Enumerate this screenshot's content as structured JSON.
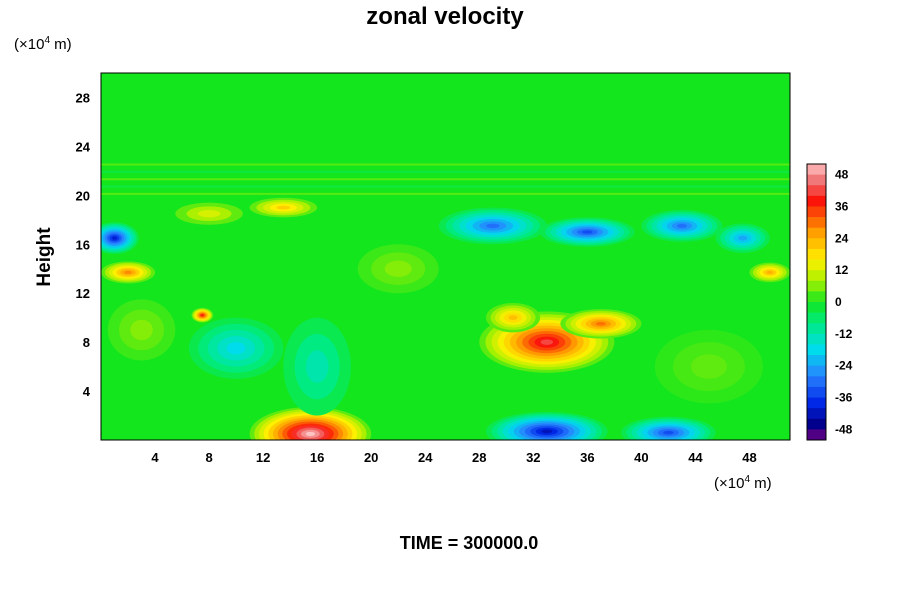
{
  "chart_data": {
    "type": "heatmap",
    "title": "zonal velocity",
    "ylabel": "Height",
    "xunit": {
      "prefix": "(×10",
      "exp": "4",
      "suffix": " m)"
    },
    "yunit": {
      "prefix": "(×10",
      "exp": "4",
      "suffix": " m)"
    },
    "footer": "TIME = 300000.0",
    "xlim": [
      0,
      51
    ],
    "ylim": [
      0,
      30
    ],
    "xticks": [
      4,
      8,
      12,
      16,
      20,
      24,
      28,
      32,
      36,
      40,
      44,
      48
    ],
    "yticks": [
      4,
      8,
      12,
      16,
      20,
      24,
      28
    ],
    "colorbar": {
      "range": [
        -52,
        52
      ],
      "step": 4,
      "ticks": [
        48,
        36,
        24,
        12,
        0,
        -12,
        -24,
        -36,
        -48
      ]
    },
    "features": [
      {
        "x": 15.5,
        "y": 0.5,
        "rx": 4.5,
        "ry": 2.2,
        "value": 52
      },
      {
        "x": 33,
        "y": 8,
        "rx": 5,
        "ry": 2.5,
        "value": 42
      },
      {
        "x": 37,
        "y": 9.5,
        "rx": 3,
        "ry": 1.2,
        "value": 30
      },
      {
        "x": 30.5,
        "y": 10,
        "rx": 2,
        "ry": 1.2,
        "value": 22
      },
      {
        "x": 7.5,
        "y": 10.2,
        "rx": 0.8,
        "ry": 0.6,
        "value": 38
      },
      {
        "x": 2,
        "y": 13.7,
        "rx": 2,
        "ry": 0.9,
        "value": 28
      },
      {
        "x": 49.5,
        "y": 13.7,
        "rx": 1.5,
        "ry": 0.8,
        "value": 24
      },
      {
        "x": 13.5,
        "y": 19,
        "rx": 2.5,
        "ry": 0.8,
        "value": 20
      },
      {
        "x": 8,
        "y": 18.5,
        "rx": 2.5,
        "ry": 0.9,
        "value": 12
      },
      {
        "x": 1,
        "y": 16.5,
        "rx": 1.8,
        "ry": 1.3,
        "value": -40
      },
      {
        "x": 29,
        "y": 17.5,
        "rx": 4,
        "ry": 1.5,
        "value": -30
      },
      {
        "x": 36,
        "y": 17,
        "rx": 3.5,
        "ry": 1.2,
        "value": -34
      },
      {
        "x": 43,
        "y": 17.5,
        "rx": 3,
        "ry": 1.3,
        "value": -30
      },
      {
        "x": 47.5,
        "y": 16.5,
        "rx": 2,
        "ry": 1.2,
        "value": -24
      },
      {
        "x": 33,
        "y": 0.7,
        "rx": 4.5,
        "ry": 1.6,
        "value": -42
      },
      {
        "x": 42,
        "y": 0.6,
        "rx": 3.5,
        "ry": 1.3,
        "value": -34
      },
      {
        "x": 10,
        "y": 7.5,
        "rx": 3.5,
        "ry": 2.5,
        "value": -18
      },
      {
        "x": 16,
        "y": 6,
        "rx": 2.5,
        "ry": 4,
        "value": -12
      },
      {
        "x": 3,
        "y": 9,
        "rx": 2.5,
        "ry": 2.5,
        "value": 6
      },
      {
        "x": 45,
        "y": 6,
        "rx": 4,
        "ry": 3,
        "value": 4
      },
      {
        "x": 22,
        "y": 14,
        "rx": 3,
        "ry": 2,
        "value": 6
      }
    ]
  }
}
